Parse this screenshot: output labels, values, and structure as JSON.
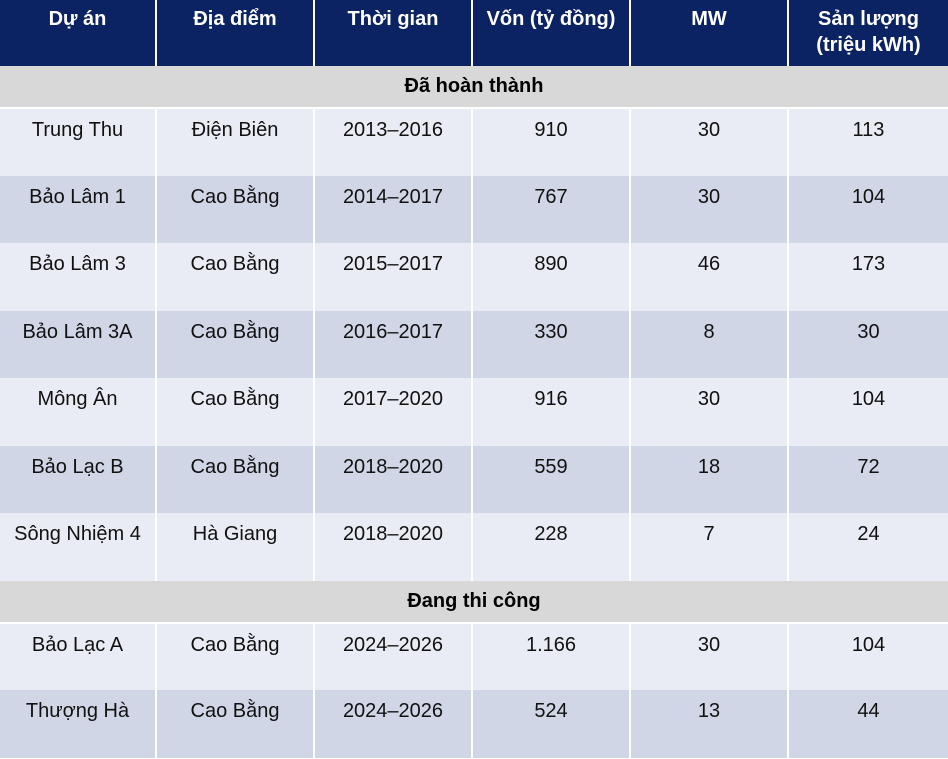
{
  "header": {
    "columns": [
      "Dự án",
      "Địa điểm",
      "Thời gian",
      "Vốn (tỷ đồng)",
      "MW",
      "Sản lượng\n(triệu kWh)"
    ]
  },
  "sections": [
    {
      "title": "Đã hoàn thành",
      "rows": [
        [
          "Trung Thu",
          "Điện Biên",
          "2013–2016",
          "910",
          "30",
          "113"
        ],
        [
          "Bảo Lâm 1",
          "Cao Bằng",
          "2014–2017",
          "767",
          "30",
          "104"
        ],
        [
          "Bảo Lâm 3",
          "Cao Bằng",
          "2015–2017",
          "890",
          "46",
          "173"
        ],
        [
          "Bảo Lâm 3A",
          "Cao Bằng",
          "2016–2017",
          "330",
          "8",
          "30"
        ],
        [
          "Mông Ân",
          "Cao Bằng",
          "2017–2020",
          "916",
          "30",
          "104"
        ],
        [
          "Bảo Lạc B",
          "Cao Bằng",
          "2018–2020",
          "559",
          "18",
          "72"
        ],
        [
          "Sông Nhiệm 4",
          "Hà Giang",
          "2018–2020",
          "228",
          "7",
          "24"
        ]
      ]
    },
    {
      "title": "Đang thi công",
      "rows": [
        [
          "Bảo Lạc A",
          "Cao Bằng",
          "2024–2026",
          "1.166",
          "30",
          "104"
        ],
        [
          "Thượng Hà",
          "Cao Bằng",
          "2024–2026",
          "524",
          "13",
          "44"
        ]
      ]
    }
  ],
  "colors": {
    "header_bg": "#0b2263",
    "section_bg": "#d8d8d8",
    "row_light": "#e9ecf4",
    "row_dark": "#d1d6e6"
  }
}
